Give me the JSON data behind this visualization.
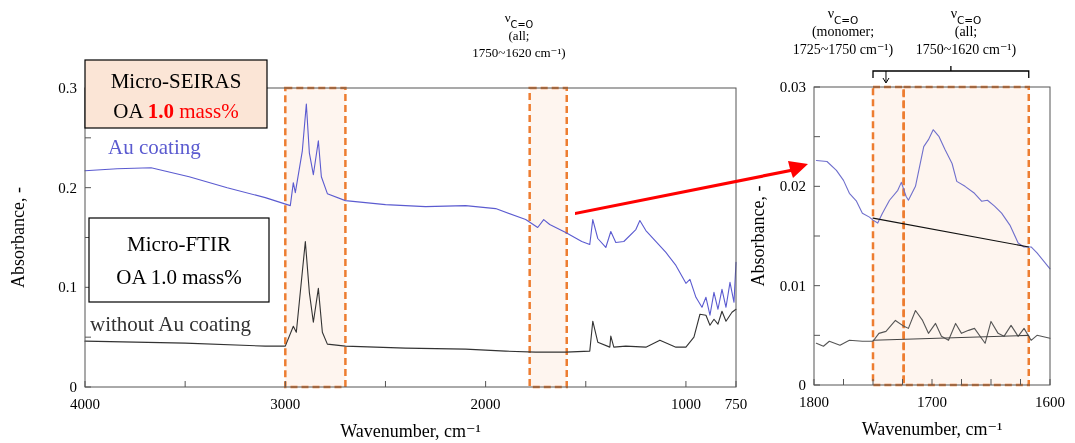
{
  "chart_data": [
    {
      "type": "line",
      "xlabel": "Wavenumber, cm⁻¹",
      "ylabel": "Absorbance, -",
      "xlim": [
        4000,
        750
      ],
      "ylim": [
        0,
        0.3
      ],
      "xticks": [
        4000,
        {
          "value": 3500,
          "label": null
        },
        3000,
        {
          "value": 2500,
          "label": null
        },
        2000,
        {
          "value": 1500,
          "label": null
        },
        1000,
        750
      ],
      "yticks": [
        0,
        {
          "value": 0.05,
          "label": null
        },
        0.1,
        {
          "value": 0.15,
          "label": null
        },
        0.2,
        {
          "value": 0.25,
          "label": null
        },
        0.3
      ],
      "annotations": [
        "ν$_{C=O}$\n(all;\n1750~1620 cm⁻¹)",
        "Micro-SEIRAS\nOA 1.0 mass%",
        "Micro-FTIR\nOA 1.0 mass%"
      ],
      "bands": [
        {
          "axis": "x",
          "from": 3000,
          "to": 2700,
          "color": "#ed7d31"
        },
        {
          "axis": "x",
          "from": 1780,
          "to": 1595,
          "color": "#ed7d31"
        }
      ],
      "series": [
        {
          "name": "Au coating",
          "color": "#5b5bd0",
          "x": [
            4000,
            3840,
            3670,
            3480,
            3290,
            3100,
            2975,
            2960,
            2950,
            2915,
            2895,
            2880,
            2860,
            2835,
            2820,
            2790,
            2700,
            2500,
            2300,
            2100,
            1950,
            1800,
            1740,
            1710,
            1680,
            1600,
            1520,
            1480,
            1465,
            1440,
            1400,
            1375,
            1350,
            1310,
            1250,
            1230,
            1200,
            1100,
            1050,
            1000,
            980,
            950,
            920,
            900,
            880,
            860,
            840,
            820,
            800,
            780,
            760,
            750
          ],
          "values": [
            0.217,
            0.219,
            0.22,
            0.211,
            0.2,
            0.19,
            0.182,
            0.205,
            0.195,
            0.237,
            0.284,
            0.235,
            0.213,
            0.247,
            0.211,
            0.194,
            0.187,
            0.183,
            0.181,
            0.182,
            0.179,
            0.168,
            0.16,
            0.168,
            0.163,
            0.155,
            0.146,
            0.143,
            0.168,
            0.149,
            0.14,
            0.156,
            0.145,
            0.146,
            0.158,
            0.167,
            0.157,
            0.135,
            0.122,
            0.104,
            0.108,
            0.09,
            0.08,
            0.09,
            0.072,
            0.095,
            0.078,
            0.098,
            0.08,
            0.105,
            0.085,
            0.125
          ]
        },
        {
          "name": "without Au coating",
          "color": "#333333",
          "x": [
            4000,
            3500,
            3100,
            3000,
            2960,
            2945,
            2900,
            2880,
            2860,
            2835,
            2815,
            2790,
            2700,
            2400,
            2100,
            1900,
            1750,
            1600,
            1480,
            1465,
            1440,
            1380,
            1375,
            1360,
            1300,
            1200,
            1130,
            1050,
            1000,
            960,
            930,
            900,
            880,
            860,
            840,
            820,
            800,
            770,
            750
          ],
          "values": [
            0.046,
            0.044,
            0.041,
            0.041,
            0.061,
            0.055,
            0.146,
            0.095,
            0.065,
            0.099,
            0.055,
            0.043,
            0.041,
            0.039,
            0.038,
            0.036,
            0.035,
            0.035,
            0.036,
            0.066,
            0.045,
            0.04,
            0.051,
            0.04,
            0.041,
            0.04,
            0.047,
            0.04,
            0.04,
            0.05,
            0.073,
            0.072,
            0.062,
            0.068,
            0.063,
            0.076,
            0.066,
            0.075,
            0.078
          ]
        }
      ]
    },
    {
      "type": "line",
      "xlabel": "Wavenumber, cm⁻¹",
      "ylabel": "Absorbance, -",
      "xlim": [
        1800,
        1600
      ],
      "ylim": [
        0,
        0.03
      ],
      "xticks": [
        1800,
        {
          "value": 1775,
          "label": null
        },
        {
          "value": 1750,
          "label": null
        },
        {
          "value": 1725,
          "label": null
        },
        1700,
        {
          "value": 1675,
          "label": null
        },
        {
          "value": 1650,
          "label": null
        },
        {
          "value": 1625,
          "label": null
        },
        1600
      ],
      "yticks": [
        0,
        {
          "value": 0.005,
          "label": null
        },
        0.01,
        {
          "value": 0.015,
          "label": null
        },
        0.02,
        {
          "value": 0.025,
          "label": null
        },
        0.03
      ],
      "annotations": [
        "ν$_{C=O}$\n(monomer;\n1725~1750 cm⁻¹)",
        "ν$_{C=O}$\n(all;\n1750~1620 cm⁻¹)"
      ],
      "bands": [
        {
          "axis": "x",
          "from": 1750,
          "to": 1724,
          "color": "#ed7d31"
        },
        {
          "axis": "x",
          "from": 1724,
          "to": 1618,
          "color": "#ed7d31"
        }
      ],
      "series": [
        {
          "color": "#6f6fcc",
          "x": [
            1798,
            1789,
            1781,
            1775,
            1770,
            1764,
            1759,
            1753,
            1750,
            1746,
            1742,
            1736,
            1729,
            1726,
            1722,
            1720,
            1714,
            1707,
            1703,
            1699,
            1694,
            1689,
            1683,
            1679,
            1672,
            1664,
            1658,
            1653,
            1647,
            1641,
            1634,
            1627,
            1622,
            1616,
            1611,
            1600
          ],
          "values": [
            0.0226,
            0.0225,
            0.0216,
            0.0206,
            0.0193,
            0.0185,
            0.0173,
            0.0169,
            0.0166,
            0.0163,
            0.0173,
            0.0186,
            0.0196,
            0.0204,
            0.019,
            0.0186,
            0.02,
            0.024,
            0.0247,
            0.0257,
            0.025,
            0.0237,
            0.0223,
            0.0205,
            0.02,
            0.0193,
            0.0185,
            0.0186,
            0.018,
            0.0173,
            0.0161,
            0.0143,
            0.0139,
            0.0139,
            0.0133,
            0.0117
          ]
        },
        {
          "color": "#555555",
          "x": [
            1798,
            1792,
            1787,
            1778,
            1770,
            1759,
            1750,
            1745,
            1739,
            1731,
            1725,
            1720,
            1714,
            1708,
            1703,
            1697,
            1692,
            1686,
            1680,
            1675,
            1669,
            1664,
            1655,
            1650,
            1644,
            1639,
            1633,
            1627,
            1622,
            1616,
            1611,
            1600
          ],
          "values": [
            0.0042,
            0.0039,
            0.0044,
            0.004,
            0.0045,
            0.0044,
            0.0044,
            0.0052,
            0.0054,
            0.0065,
            0.006,
            0.0057,
            0.0075,
            0.0065,
            0.0052,
            0.0062,
            0.0049,
            0.0045,
            0.0062,
            0.0052,
            0.0055,
            0.0057,
            0.0042,
            0.0064,
            0.0052,
            0.0049,
            0.006,
            0.0049,
            0.0057,
            0.0045,
            0.005,
            0.0047
          ]
        },
        {
          "type": "line",
          "color": "#111111",
          "x": [
            1750,
            1618
          ],
          "values": [
            0.0168,
            0.0139
          ]
        },
        {
          "type": "line",
          "color": "#444444",
          "x": [
            1750,
            1618
          ],
          "values": [
            0.0045,
            0.005
          ]
        }
      ]
    }
  ]
}
